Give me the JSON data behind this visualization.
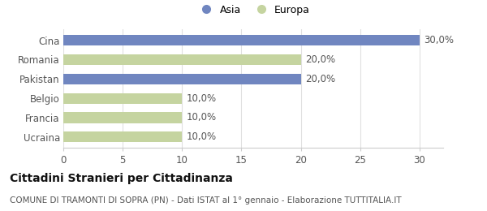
{
  "categories": [
    "Ucraina",
    "Francia",
    "Belgio",
    "Pakistan",
    "Romania",
    "Cina"
  ],
  "values": [
    10,
    10,
    10,
    20,
    20,
    30
  ],
  "colors": [
    "#c5d4a0",
    "#c5d4a0",
    "#c5d4a0",
    "#7086c0",
    "#c5d4a0",
    "#7086c0"
  ],
  "labels": [
    "10,0%",
    "10,0%",
    "10,0%",
    "20,0%",
    "20,0%",
    "30,0%"
  ],
  "xlim_max": 32,
  "xticks": [
    0,
    5,
    10,
    15,
    20,
    25,
    30
  ],
  "legend_items": [
    {
      "label": "Asia",
      "color": "#7086c0"
    },
    {
      "label": "Europa",
      "color": "#c5d4a0"
    }
  ],
  "title_bold": "Cittadini Stranieri per Cittadinanza",
  "subtitle": "COMUNE DI TRAMONTI DI SOPRA (PN) - Dati ISTAT al 1° gennaio - Elaborazione TUTTITALIA.IT",
  "background_color": "#ffffff",
  "bar_height": 0.55,
  "label_fontsize": 8.5,
  "tick_fontsize": 8.5,
  "legend_fontsize": 9,
  "title_fontsize": 10,
  "subtitle_fontsize": 7.5,
  "label_color": "#555555",
  "grid_color": "#e0e0e0",
  "spine_color": "#cccccc"
}
